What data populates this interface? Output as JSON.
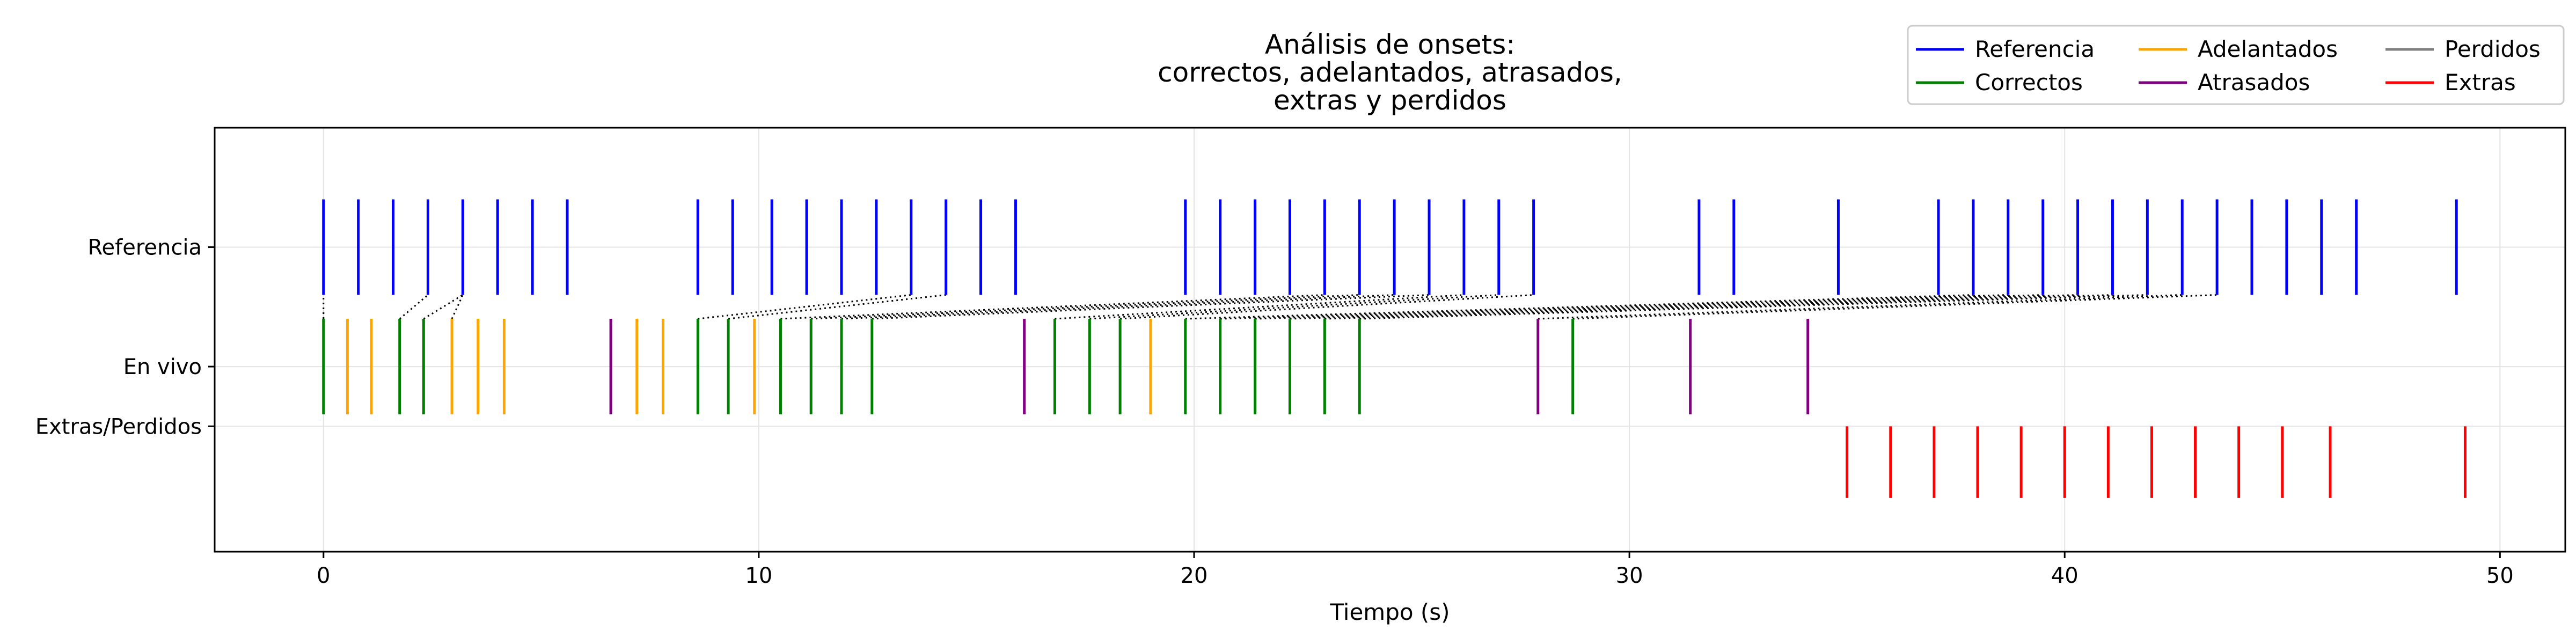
{
  "chart_data": {
    "type": "event-plot",
    "title_lines": [
      "Análisis de onsets:",
      "correctos, adelantados, atrasados,",
      "extras y perdidos"
    ],
    "xlabel": "Tiempo (s)",
    "ylabel": "",
    "xlim": [
      -2.5,
      51.5
    ],
    "ylim": [
      -0.55,
      3.0
    ],
    "grid": true,
    "x_ticks": [
      0,
      10,
      20,
      30,
      40,
      50
    ],
    "y_rows": [
      {
        "label": "Referencia",
        "y": 2.0
      },
      {
        "label": "En vivo",
        "y": 1.0
      },
      {
        "label": "Extras/Perdidos",
        "y": 0.5
      }
    ],
    "legend": {
      "placement": "top-right",
      "entries": [
        {
          "label": "Referencia",
          "color": "#0000ff"
        },
        {
          "label": "Correctos",
          "color": "#008000"
        },
        {
          "label": "Adelantados",
          "color": "#ffa500"
        },
        {
          "label": "Atrasados",
          "color": "#800080"
        },
        {
          "label": "Perdidos",
          "color": "#808080"
        },
        {
          "label": "Extras",
          "color": "#ff0000"
        }
      ]
    },
    "series": [
      {
        "name": "Referencia",
        "color": "#0000ff",
        "y_range": [
          1.6,
          2.4
        ],
        "x": [
          0.0,
          0.8,
          1.6,
          2.4,
          3.2,
          4.0,
          4.8,
          5.6,
          8.6,
          9.4,
          10.3,
          11.1,
          11.9,
          12.7,
          13.5,
          14.3,
          15.1,
          15.9,
          19.8,
          20.6,
          21.4,
          22.2,
          23.0,
          23.8,
          24.6,
          25.4,
          26.2,
          27.0,
          27.8,
          31.6,
          32.4,
          34.8,
          37.1,
          37.9,
          38.7,
          39.5,
          40.3,
          41.1,
          41.9,
          42.7,
          43.5,
          44.3,
          45.1,
          45.9,
          46.7,
          49.0
        ]
      },
      {
        "name": "Correctos",
        "color": "#008000",
        "y_range": [
          0.6,
          1.4
        ],
        "x": [
          0.0,
          1.75,
          2.3,
          8.6,
          9.3,
          10.5,
          11.2,
          11.9,
          12.6,
          16.8,
          17.6,
          18.3,
          19.8,
          20.6,
          21.4,
          22.2,
          23.0,
          23.8,
          28.7
        ]
      },
      {
        "name": "Adelantados",
        "color": "#ffa500",
        "y_range": [
          0.6,
          1.4
        ],
        "x": [
          0.55,
          1.1,
          2.95,
          3.55,
          4.15,
          7.2,
          7.8,
          9.9,
          19.0
        ]
      },
      {
        "name": "Atrasados",
        "color": "#800080",
        "y_range": [
          0.6,
          1.4
        ],
        "x": [
          6.6,
          16.1,
          27.9,
          31.4,
          34.1
        ]
      },
      {
        "name": "Extras",
        "color": "#ff0000",
        "y_range": [
          -0.1,
          0.5
        ],
        "x": [
          35.0,
          36.0,
          37.0,
          38.0,
          39.0,
          40.0,
          41.0,
          42.0,
          43.0,
          44.0,
          45.0,
          46.1,
          49.2
        ]
      }
    ],
    "matches": [
      {
        "live": 0.0,
        "ref": 0.0
      },
      {
        "live": 1.75,
        "ref": 2.4
      },
      {
        "live": 2.3,
        "ref": 3.2
      },
      {
        "live": 2.95,
        "ref": 3.2
      },
      {
        "live": 8.6,
        "ref": 13.5
      },
      {
        "live": 9.3,
        "ref": 14.3
      },
      {
        "live": 10.5,
        "ref": 23.0
      },
      {
        "live": 11.2,
        "ref": 23.8
      },
      {
        "live": 11.9,
        "ref": 24.6
      },
      {
        "live": 12.6,
        "ref": 25.4
      },
      {
        "live": 16.8,
        "ref": 26.2
      },
      {
        "live": 17.6,
        "ref": 27.0
      },
      {
        "live": 18.3,
        "ref": 27.8
      },
      {
        "live": 19.8,
        "ref": 37.9
      },
      {
        "live": 20.6,
        "ref": 38.7
      },
      {
        "live": 21.4,
        "ref": 39.5
      },
      {
        "live": 22.2,
        "ref": 40.3
      },
      {
        "live": 23.0,
        "ref": 41.1
      },
      {
        "live": 23.8,
        "ref": 41.9
      },
      {
        "live": 27.9,
        "ref": 42.7
      },
      {
        "live": 28.7,
        "ref": 43.5
      }
    ]
  }
}
